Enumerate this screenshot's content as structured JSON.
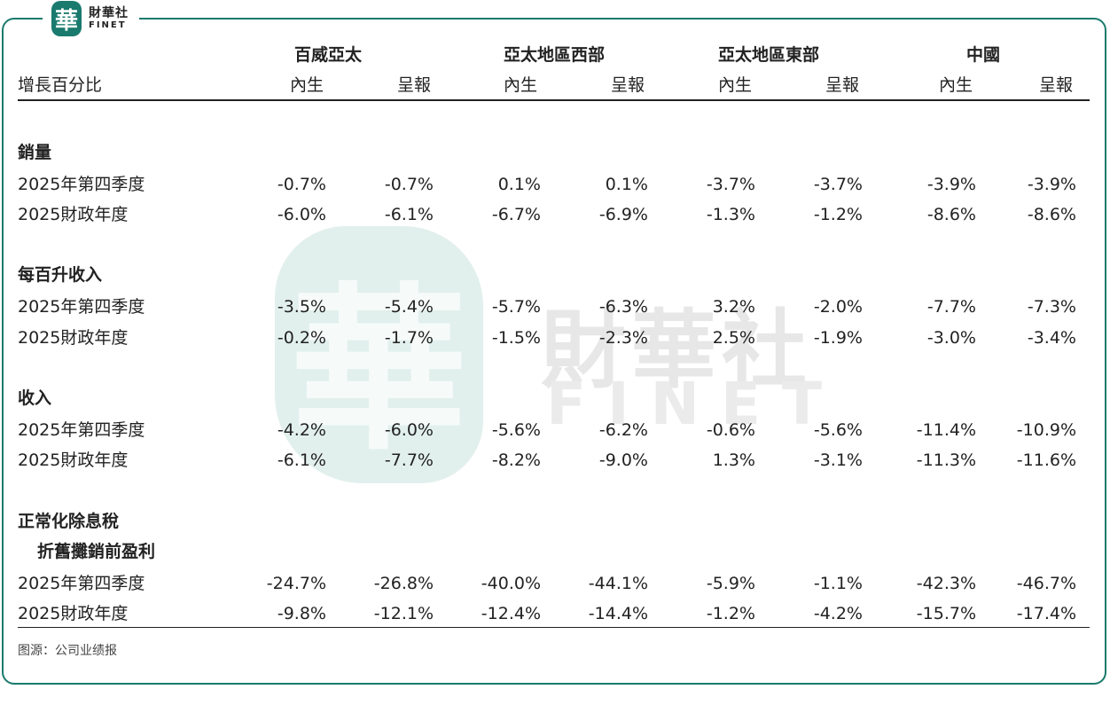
{
  "header": {
    "logo_glyph": "華",
    "logo_cn": "財華社",
    "logo_en": "FINET",
    "regions": [
      "百威亞太",
      "亞太地區西部",
      "亞太地區東部",
      "中國"
    ],
    "row_label": "增長百分比",
    "sub_cols": [
      "內生",
      "呈報",
      "內生",
      "呈報",
      "內生",
      "呈報",
      "內生",
      "呈報"
    ]
  },
  "watermark": {
    "glyph": "華",
    "cn": "財華社",
    "en": "FINET"
  },
  "sections": [
    {
      "title": "銷量",
      "rows": [
        {
          "label": "2025年第四季度",
          "values": [
            "-0.7%",
            "-0.7%",
            "0.1%",
            "0.1%",
            "-3.7%",
            "-3.7%",
            "-3.9%",
            "-3.9%"
          ]
        },
        {
          "label": "2025財政年度",
          "values": [
            "-6.0%",
            "-6.1%",
            "-6.7%",
            "-6.9%",
            "-1.3%",
            "-1.2%",
            "-8.6%",
            "-8.6%"
          ]
        }
      ]
    },
    {
      "title": "每百升收入",
      "rows": [
        {
          "label": "2025年第四季度",
          "values": [
            "-3.5%",
            "-5.4%",
            "-5.7%",
            "-6.3%",
            "3.2%",
            "-2.0%",
            "-7.7%",
            "-7.3%"
          ]
        },
        {
          "label": "2025財政年度",
          "values": [
            "-0.2%",
            "-1.7%",
            "-1.5%",
            "-2.3%",
            "2.5%",
            "-1.9%",
            "-3.0%",
            "-3.4%"
          ]
        }
      ]
    },
    {
      "title": "收入",
      "rows": [
        {
          "label": "2025年第四季度",
          "values": [
            "-4.2%",
            "-6.0%",
            "-5.6%",
            "-6.2%",
            "-0.6%",
            "-5.6%",
            "-11.4%",
            "-10.9%"
          ]
        },
        {
          "label": "2025財政年度",
          "values": [
            "-6.1%",
            "-7.7%",
            "-8.2%",
            "-9.0%",
            "1.3%",
            "-3.1%",
            "-11.3%",
            "-11.6%"
          ]
        }
      ]
    },
    {
      "title": "正常化除息稅",
      "title_line2": "折舊攤銷前盈利",
      "rows": [
        {
          "label": "2025年第四季度",
          "values": [
            "-24.7%",
            "-26.8%",
            "-40.0%",
            "-44.1%",
            "-5.9%",
            "-1.1%",
            "-42.3%",
            "-46.7%"
          ]
        },
        {
          "label": "2025財政年度",
          "values": [
            "-9.8%",
            "-12.1%",
            "-12.4%",
            "-14.4%",
            "-1.2%",
            "-4.2%",
            "-15.7%",
            "-17.4%"
          ]
        }
      ]
    }
  ],
  "source": "图源：公司业绩报",
  "colors": {
    "frame": "#1a7a6e",
    "watermark": "#d9ebe8"
  }
}
